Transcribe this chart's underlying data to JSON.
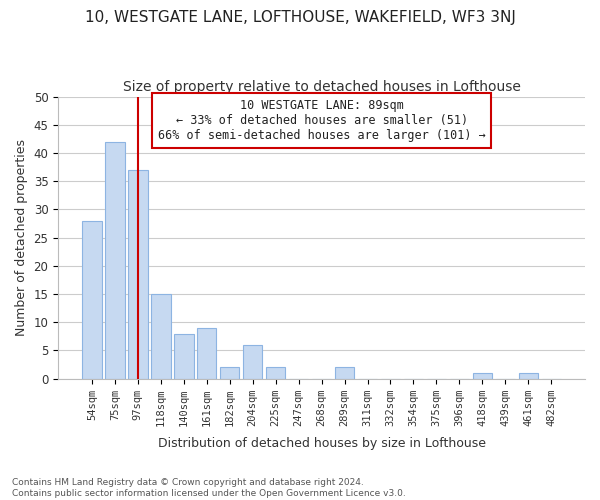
{
  "title": "10, WESTGATE LANE, LOFTHOUSE, WAKEFIELD, WF3 3NJ",
  "subtitle": "Size of property relative to detached houses in Lofthouse",
  "xlabel": "Distribution of detached houses by size in Lofthouse",
  "ylabel": "Number of detached properties",
  "bar_labels": [
    "54sqm",
    "75sqm",
    "97sqm",
    "118sqm",
    "140sqm",
    "161sqm",
    "182sqm",
    "204sqm",
    "225sqm",
    "247sqm",
    "268sqm",
    "289sqm",
    "311sqm",
    "332sqm",
    "354sqm",
    "375sqm",
    "396sqm",
    "418sqm",
    "439sqm",
    "461sqm",
    "482sqm"
  ],
  "bar_values": [
    28,
    42,
    37,
    15,
    8,
    9,
    2,
    6,
    2,
    0,
    0,
    2,
    0,
    0,
    0,
    0,
    0,
    1,
    0,
    1,
    0
  ],
  "bar_color": "#c6d9f1",
  "bar_edge_color": "#8db4e2",
  "grid_color": "#cccccc",
  "property_line_color": "#cc0000",
  "annotation_line1": "10 WESTGATE LANE: 89sqm",
  "annotation_line2": "← 33% of detached houses are smaller (51)",
  "annotation_line3": "66% of semi-detached houses are larger (101) →",
  "annotation_box_color": "#ffffff",
  "annotation_box_edge": "#cc0000",
  "footer_text": "Contains HM Land Registry data © Crown copyright and database right 2024.\nContains public sector information licensed under the Open Government Licence v3.0.",
  "ylim": [
    0,
    50
  ],
  "yticks": [
    0,
    5,
    10,
    15,
    20,
    25,
    30,
    35,
    40,
    45,
    50
  ],
  "background_color": "#ffffff",
  "title_fontsize": 11,
  "subtitle_fontsize": 10,
  "property_line_idx": 2
}
